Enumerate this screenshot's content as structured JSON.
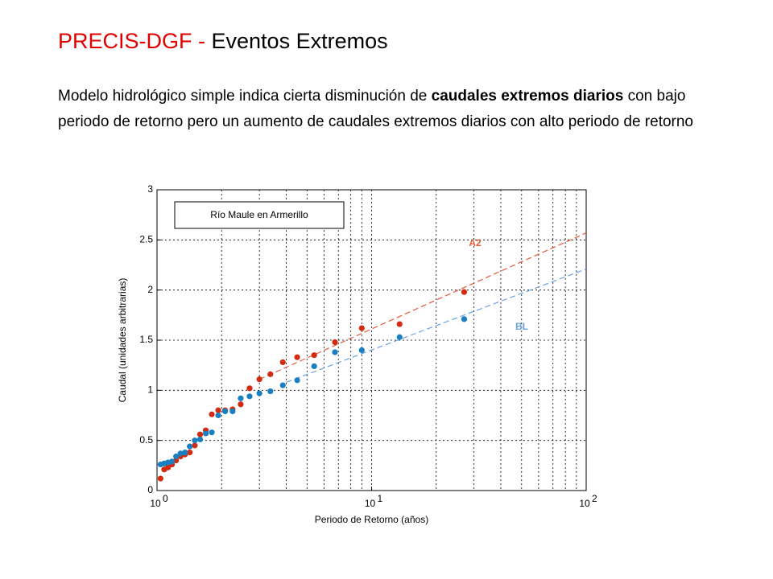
{
  "slide": {
    "title": [
      "PRECIS-DGF  - ",
      "Eventos Extremos"
    ],
    "body": [
      {
        "text": "Modelo hidrológico simple indica cierta disminución de ",
        "bold": false
      },
      {
        "text": "caudales extremos diarios",
        "bold": true
      },
      {
        "text": " con bajo periodo de retorno pero un aumento de caudales extremos diarios con alto periodo de retorno",
        "bold": false
      }
    ]
  },
  "chart_data": {
    "type": "scatter",
    "annotation": "Río Maule en Armerillo",
    "xlabel": "Periodo de Retorno (años)",
    "ylabel": "Caudal (unidades arbitrarias)",
    "xscale": "log",
    "grid": true,
    "xlim": [
      1,
      100
    ],
    "ylim": [
      0,
      3
    ],
    "xticks": [
      {
        "value": 1,
        "label": "10",
        "exponent": "0"
      },
      {
        "value": 10,
        "label": "10",
        "exponent": "1"
      },
      {
        "value": 100,
        "label": "10",
        "exponent": "2"
      }
    ],
    "yticks": [
      0,
      0.5,
      1,
      1.5,
      2,
      2.5,
      3
    ],
    "x": [
      27,
      13.5,
      9,
      6.75,
      5.4,
      4.5,
      3.857,
      3.375,
      3,
      2.7,
      2.4545,
      2.25,
      2.077,
      1.929,
      1.8,
      1.6875,
      1.588,
      1.5,
      1.421,
      1.35,
      1.286,
      1.227,
      1.174,
      1.125,
      1.08,
      1.0385
    ],
    "series": [
      {
        "name": "A2",
        "color": "#d42b10",
        "fit_color": "#e8593a",
        "values": [
          1.98,
          1.66,
          1.62,
          1.48,
          1.35,
          1.33,
          1.28,
          1.16,
          1.11,
          1.02,
          0.86,
          0.81,
          0.8,
          0.8,
          0.76,
          0.6,
          0.56,
          0.45,
          0.38,
          0.36,
          0.34,
          0.3,
          0.26,
          0.23,
          0.21,
          0.12
        ],
        "fit_x": [
          3,
          100
        ],
        "fit_values": [
          1.11,
          2.57
        ]
      },
      {
        "name": "BL",
        "color": "#1a7fc0",
        "fit_color": "#6aa0e0",
        "values": [
          1.71,
          1.53,
          1.4,
          1.38,
          1.24,
          1.1,
          1.05,
          0.99,
          0.97,
          0.94,
          0.92,
          0.79,
          0.79,
          0.75,
          0.58,
          0.57,
          0.51,
          0.5,
          0.44,
          0.38,
          0.37,
          0.34,
          0.29,
          0.28,
          0.27,
          0.26
        ],
        "fit_x": [
          4,
          100
        ],
        "fit_values": [
          1.08,
          2.21
        ]
      }
    ]
  }
}
